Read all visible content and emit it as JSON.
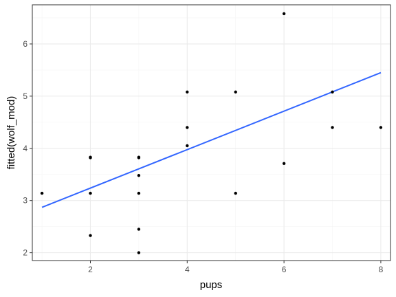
{
  "chart_data": {
    "type": "scatter",
    "xlabel": "pups",
    "ylabel": "fitted(wolf_mod)",
    "xlim": [
      0.8,
      8.2
    ],
    "ylim": [
      1.85,
      6.75
    ],
    "grid": true,
    "x_ticks": [
      2,
      4,
      6,
      8
    ],
    "y_ticks": [
      2,
      3,
      4,
      5,
      6
    ],
    "x_tick_labels": [
      "2",
      "4",
      "6",
      "8"
    ],
    "y_tick_labels": [
      "2",
      "3",
      "4",
      "5",
      "6"
    ],
    "points": [
      {
        "x": 1,
        "y": 3.14
      },
      {
        "x": 2,
        "y": 3.83
      },
      {
        "x": 2,
        "y": 3.82
      },
      {
        "x": 2,
        "y": 3.14
      },
      {
        "x": 2,
        "y": 2.33
      },
      {
        "x": 3,
        "y": 3.83
      },
      {
        "x": 3,
        "y": 3.82
      },
      {
        "x": 3,
        "y": 3.48
      },
      {
        "x": 3,
        "y": 3.14
      },
      {
        "x": 3,
        "y": 2.45
      },
      {
        "x": 3,
        "y": 2.0
      },
      {
        "x": 4,
        "y": 5.08
      },
      {
        "x": 4,
        "y": 4.4
      },
      {
        "x": 4,
        "y": 4.05
      },
      {
        "x": 5,
        "y": 5.08
      },
      {
        "x": 5,
        "y": 3.14
      },
      {
        "x": 6,
        "y": 6.58
      },
      {
        "x": 6,
        "y": 3.71
      },
      {
        "x": 7,
        "y": 5.08
      },
      {
        "x": 7,
        "y": 4.4
      },
      {
        "x": 8,
        "y": 4.4
      }
    ],
    "fit_line": {
      "x": [
        1,
        8
      ],
      "y": [
        2.87,
        5.45
      ]
    },
    "colors": {
      "points": "#000000",
      "fit_line": "#3366FF",
      "grid_major": "#ebebeb",
      "grid_minor": "#f5f5f5",
      "panel_border": "#333333",
      "tick_label": "#4d4d4d",
      "background": "#ffffff"
    }
  }
}
